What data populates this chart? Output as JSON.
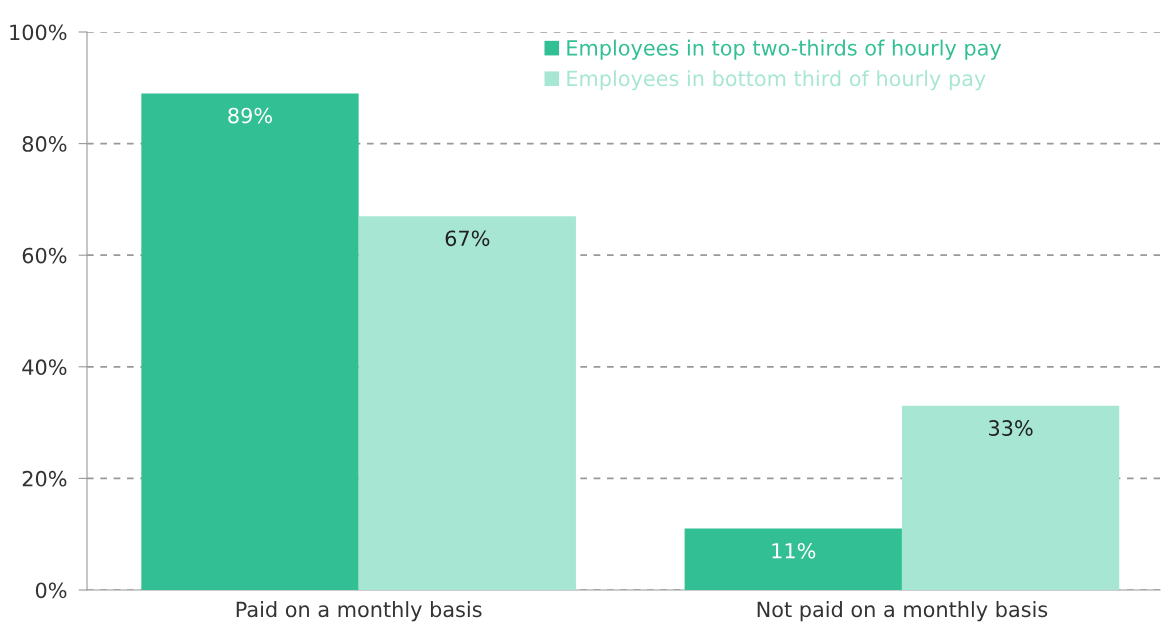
{
  "chart_data": {
    "type": "bar",
    "categories": [
      "Paid on a monthly basis",
      "Not paid on a monthly basis"
    ],
    "series": [
      {
        "name": "Employees in top two-thirds of hourly pay",
        "color": "#33bf94",
        "values": [
          89,
          11
        ],
        "value_labels": [
          "89%",
          "11%"
        ]
      },
      {
        "name": "Employees in bottom third of hourly pay",
        "color": "#a8e6d4",
        "values": [
          67,
          33
        ],
        "value_labels": [
          "67%",
          "33%"
        ]
      }
    ],
    "ylim": [
      0,
      100
    ],
    "yticks": [
      {
        "value": 0,
        "label": "0%"
      },
      {
        "value": 20,
        "label": "20%"
      },
      {
        "value": 40,
        "label": "40%"
      },
      {
        "value": 60,
        "label": "60%"
      },
      {
        "value": 80,
        "label": "80%"
      },
      {
        "value": 100,
        "label": "100%"
      }
    ],
    "grid": "y",
    "legend": "top right"
  }
}
